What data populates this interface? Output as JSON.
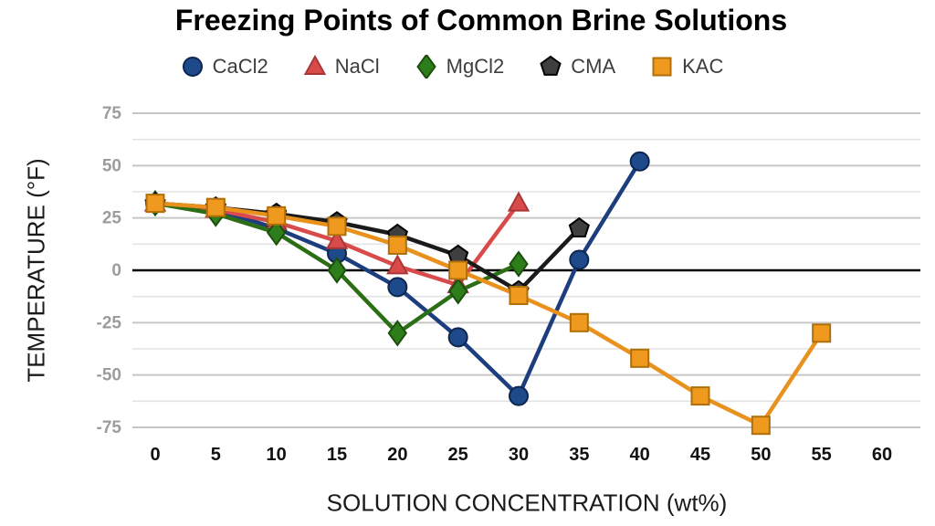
{
  "chart_data": {
    "type": "line",
    "title": "Freezing Points of Common Brine Solutions",
    "xlabel": "SOLUTION CONCENTRATION (wt%)",
    "ylabel": "TEMPERATURE (°F)",
    "x_ticks": [
      0,
      5,
      10,
      15,
      20,
      25,
      30,
      35,
      40,
      45,
      50,
      55,
      60
    ],
    "y_ticks": [
      75,
      50,
      25,
      0,
      -25,
      -50,
      -75
    ],
    "y_minor_ticks": [
      62.5,
      37.5,
      12.5,
      -12.5,
      -37.5,
      -62.5
    ],
    "xlim": [
      0,
      60
    ],
    "ylim": [
      -75,
      75
    ],
    "grid": true,
    "legend_position": "top",
    "zero_line_color": "#000000",
    "major_grid_color": "#c7c7c7",
    "minor_grid_color": "#e3e3e3",
    "series": [
      {
        "name": "CaCl2",
        "marker": "circle",
        "color": "#1c3e7e",
        "marker_fill": "#1e4a8c",
        "marker_edge": "#0d2650",
        "x": [
          0,
          5,
          10,
          15,
          20,
          25,
          30,
          35,
          40
        ],
        "y": [
          32,
          29,
          20,
          8,
          -8,
          -32,
          -60,
          5,
          52
        ]
      },
      {
        "name": "NaCl",
        "marker": "triangle",
        "color": "#d94b4b",
        "marker_fill": "#d94b4b",
        "marker_edge": "#a83636",
        "x": [
          0,
          5,
          10,
          15,
          20,
          25,
          30
        ],
        "y": [
          32,
          29,
          23,
          14,
          2,
          -7,
          32
        ]
      },
      {
        "name": "MgCl2",
        "marker": "diamond",
        "color": "#2c6e16",
        "marker_fill": "#2e7d1b",
        "marker_edge": "#1c4f0d",
        "x": [
          0,
          5,
          10,
          15,
          20,
          25,
          30
        ],
        "y": [
          32,
          27,
          18,
          0,
          -30,
          -10,
          3
        ]
      },
      {
        "name": "CMA",
        "marker": "pentagon",
        "color": "#1a1a1a",
        "marker_fill": "#3f3f3f",
        "marker_edge": "#000000",
        "x": [
          0,
          5,
          10,
          15,
          20,
          25,
          30,
          35
        ],
        "y": [
          32,
          30,
          27,
          23,
          17,
          7,
          -10,
          20
        ]
      },
      {
        "name": "KAC",
        "marker": "square",
        "color": "#e8921d",
        "marker_fill": "#ef9a1f",
        "marker_edge": "#b06f0a",
        "x": [
          0,
          5,
          10,
          15,
          20,
          25,
          30,
          35,
          40,
          45,
          50,
          55
        ],
        "y": [
          32,
          30,
          26,
          21,
          12,
          0,
          -12,
          -25,
          -42,
          -60,
          -74,
          -30
        ]
      }
    ]
  }
}
